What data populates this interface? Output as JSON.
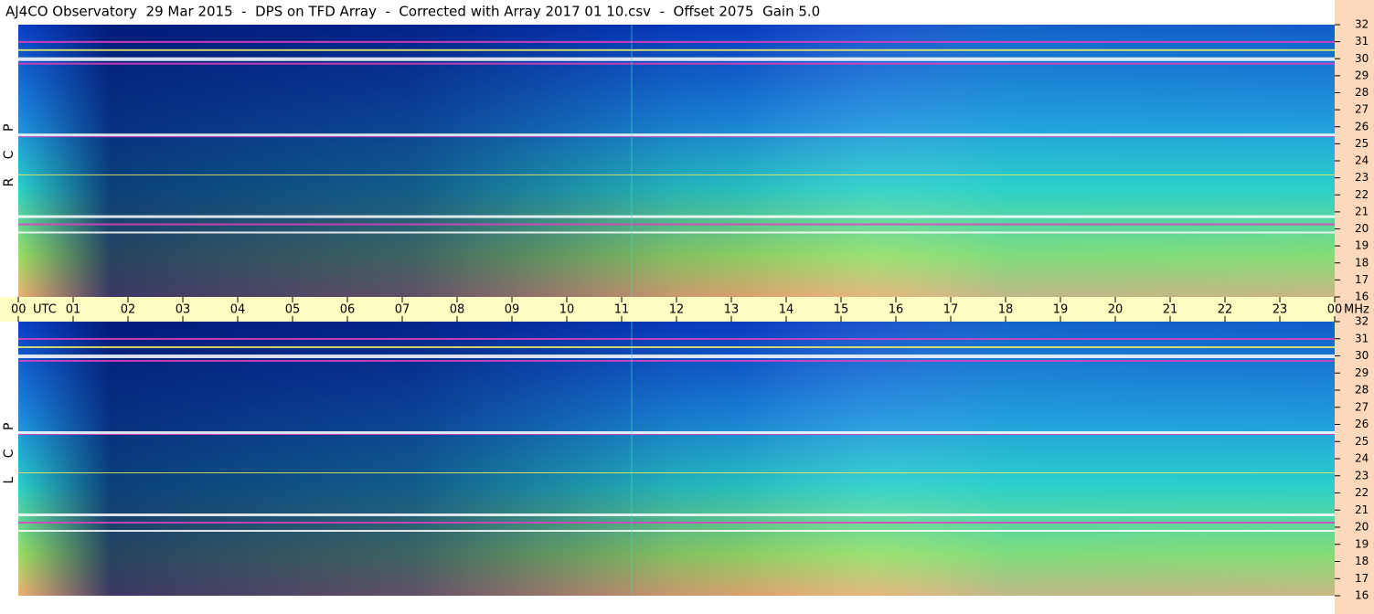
{
  "chart_data": {
    "type": "spectrogram",
    "title": "AJ4CO Observatory  29 Mar 2015  -  DPS on TFD Array  -  Corrected with Array 2017 01 10.csv  -  Offset 2075  Gain 5.0",
    "x_label": "UTC",
    "y_label": "MHz",
    "xlim": [
      0,
      24
    ],
    "xticks": [
      {
        "value": 0,
        "label": "00"
      },
      {
        "value": 1,
        "label": "01"
      },
      {
        "value": 2,
        "label": "02"
      },
      {
        "value": 3,
        "label": "03"
      },
      {
        "value": 4,
        "label": "04"
      },
      {
        "value": 5,
        "label": "05"
      },
      {
        "value": 6,
        "label": "06"
      },
      {
        "value": 7,
        "label": "07"
      },
      {
        "value": 8,
        "label": "08"
      },
      {
        "value": 9,
        "label": "09"
      },
      10,
      11,
      12,
      13,
      14,
      15,
      16,
      17,
      18,
      19,
      20,
      21,
      22,
      23,
      {
        "value": 24,
        "label": "00"
      }
    ],
    "panels": [
      {
        "label": "R C P",
        "ylim": [
          16,
          32
        ],
        "yticks": [
          16,
          17,
          18,
          19,
          20,
          21,
          22,
          23,
          24,
          25,
          26,
          27,
          28,
          29,
          30,
          31,
          32
        ]
      },
      {
        "label": "L C P",
        "ylim": [
          16,
          32
        ],
        "yticks": [
          16,
          17,
          18,
          19,
          20,
          21,
          22,
          23,
          24,
          25,
          26,
          27,
          28,
          29,
          30,
          31,
          32
        ]
      }
    ]
  }
}
